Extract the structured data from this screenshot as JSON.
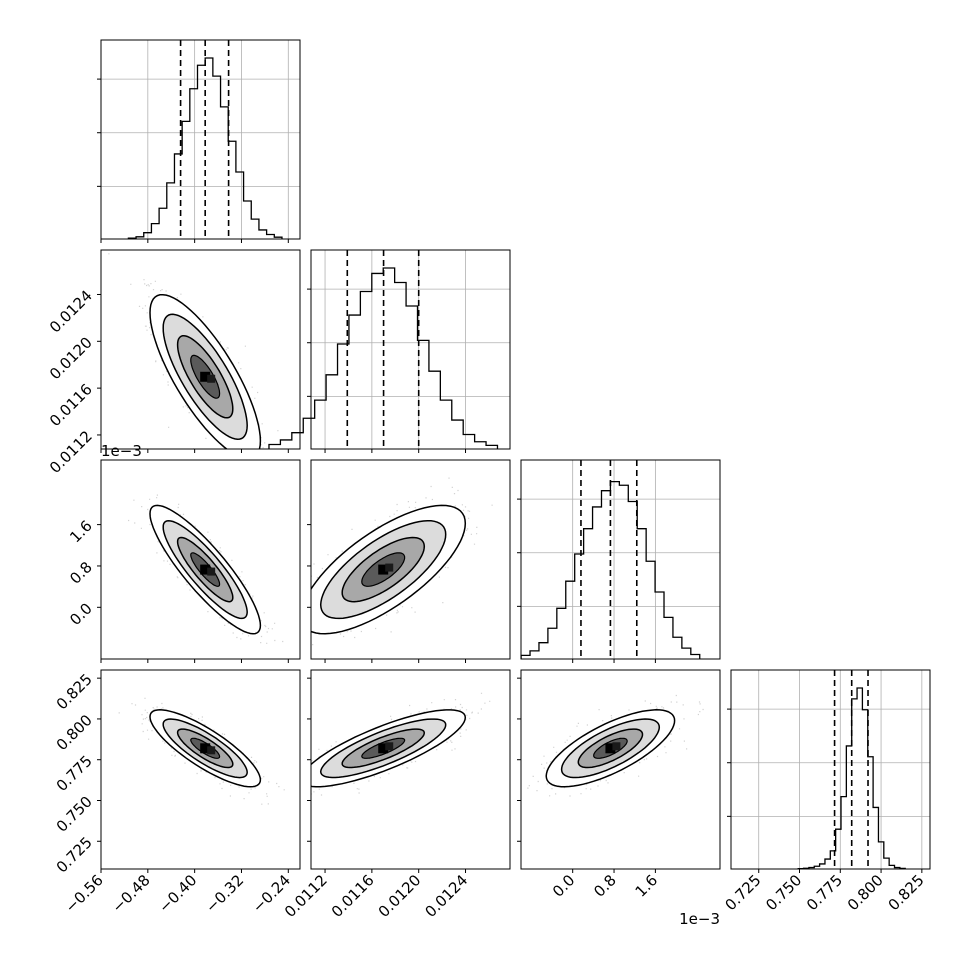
{
  "figure": {
    "colors": {
      "background": "#ffffff",
      "line": "#000000",
      "grid": "#b0b0b0",
      "points": "#7f7f7f"
    }
  },
  "chart_data": {
    "type": "corner",
    "parameters": [
      {
        "range": [
          -0.56,
          -0.22
        ],
        "ticks": [
          -0.56,
          -0.48,
          -0.4,
          -0.32,
          -0.24
        ],
        "tick_labels": [
          "−0.56",
          "−0.48",
          "−0.40",
          "−0.32",
          "−0.24"
        ],
        "offset_label": "",
        "quantiles": [
          -0.424,
          -0.382,
          -0.342
        ]
      },
      {
        "range": [
          0.01108,
          0.01278
        ],
        "ticks": [
          0.0112,
          0.0116,
          0.012,
          0.0124
        ],
        "tick_labels": [
          "0.0112",
          "0.0116",
          "0.0120",
          "0.0124"
        ],
        "offset_label": "",
        "quantiles": [
          0.01139,
          0.0117,
          0.012
        ]
      },
      {
        "range": [
          -1.0,
          2.85
        ],
        "ticks": [
          0.0,
          0.8,
          1.6
        ],
        "tick_labels": [
          "0.0",
          "0.8",
          "1.6"
        ],
        "offset_label": "1e−3",
        "quantiles": [
          0.16,
          0.73,
          1.24
        ]
      },
      {
        "range": [
          0.708,
          0.83
        ],
        "ticks": [
          0.725,
          0.75,
          0.775,
          0.8,
          0.825
        ],
        "tick_labels": [
          "0.725",
          "0.750",
          "0.775",
          "0.800",
          "0.825"
        ],
        "offset_label": "",
        "quantiles": [
          0.7715,
          0.782,
          0.792
        ]
      }
    ],
    "histograms": [
      [
        0.005,
        0.012,
        0.035,
        0.085,
        0.17,
        0.31,
        0.47,
        0.65,
        0.83,
        0.96,
        1.0,
        0.9,
        0.73,
        0.54,
        0.37,
        0.21,
        0.11,
        0.05,
        0.025,
        0.01
      ],
      [
        0.025,
        0.05,
        0.09,
        0.17,
        0.27,
        0.41,
        0.58,
        0.74,
        0.87,
        0.97,
        1.0,
        0.92,
        0.79,
        0.6,
        0.43,
        0.27,
        0.16,
        0.08,
        0.04,
        0.02
      ],
      [
        0.02,
        0.045,
        0.09,
        0.17,
        0.28,
        0.43,
        0.58,
        0.72,
        0.84,
        0.93,
        0.98,
        0.96,
        0.87,
        0.72,
        0.54,
        0.37,
        0.23,
        0.12,
        0.06,
        0.025
      ],
      [
        0.002,
        0.004,
        0.008,
        0.015,
        0.028,
        0.055,
        0.1,
        0.22,
        0.4,
        0.68,
        0.94,
        1.0,
        0.88,
        0.62,
        0.34,
        0.15,
        0.06,
        0.02,
        0.008,
        0.003
      ]
    ],
    "means": [
      -0.382,
      0.011697,
      0.73,
      0.782
    ],
    "correlations": {
      "0-1": -0.78,
      "0-2": -0.87,
      "0-3": -0.82,
      "1-2": 0.72,
      "1-3": 0.8,
      "2-3": 0.72
    }
  }
}
